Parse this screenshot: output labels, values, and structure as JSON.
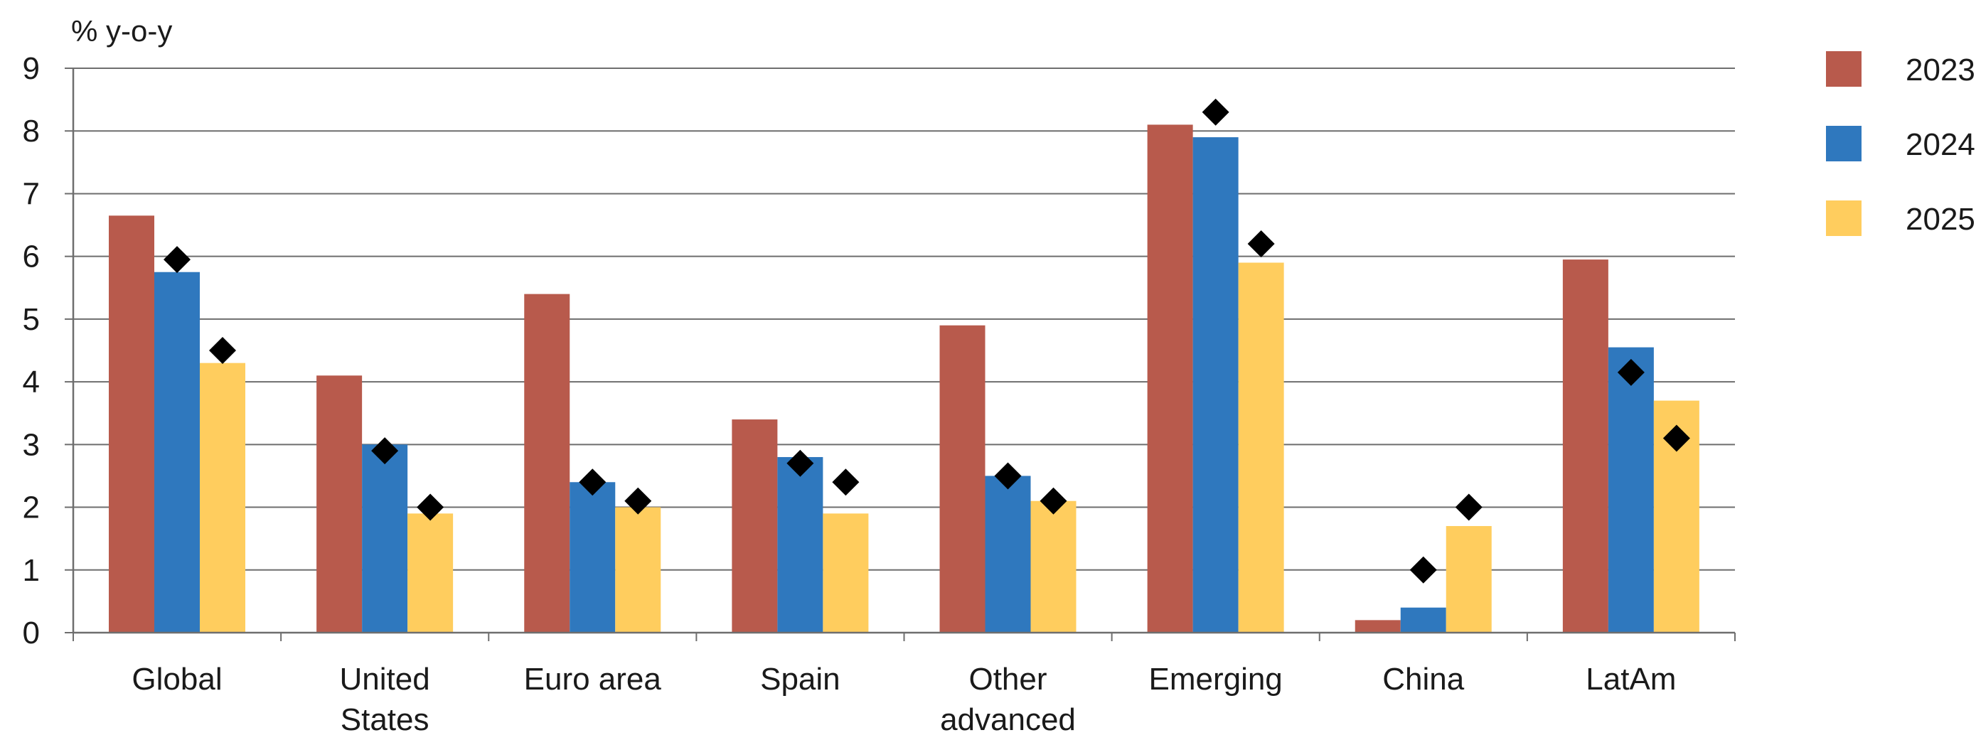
{
  "chart_data": {
    "type": "bar",
    "unit_label": "% y-o-y",
    "categories": [
      [
        "Global"
      ],
      [
        "United",
        "States"
      ],
      [
        "Euro area"
      ],
      [
        "Spain"
      ],
      [
        "Other",
        "advanced"
      ],
      [
        "Emerging"
      ],
      [
        "China"
      ],
      [
        "LatAm"
      ]
    ],
    "series": [
      {
        "name": "2023",
        "color": "#B85A4C",
        "values": [
          6.65,
          4.1,
          5.4,
          3.4,
          4.9,
          8.1,
          0.2,
          5.95
        ]
      },
      {
        "name": "2024",
        "color": "#2F78BE",
        "values": [
          5.75,
          3.0,
          2.4,
          2.8,
          2.5,
          7.9,
          0.4,
          4.55
        ]
      },
      {
        "name": "2025",
        "color": "#FFCD5E",
        "values": [
          4.3,
          1.9,
          2.0,
          1.9,
          2.1,
          5.9,
          1.7,
          3.7
        ]
      }
    ],
    "markers": [
      {
        "series": "2024",
        "values": [
          5.95,
          2.9,
          2.4,
          2.7,
          2.5,
          8.3,
          1.0,
          4.15
        ]
      },
      {
        "series": "2025",
        "values": [
          4.5,
          2.0,
          2.1,
          2.4,
          2.1,
          6.2,
          2.0,
          3.1
        ]
      }
    ],
    "marker_color": "#000000",
    "ylim": [
      0,
      9
    ],
    "yticks": [
      0,
      1,
      2,
      3,
      4,
      5,
      6,
      7,
      8,
      9
    ],
    "grid": true,
    "grid_color": "#6e6e6e",
    "legend_position": "right"
  }
}
